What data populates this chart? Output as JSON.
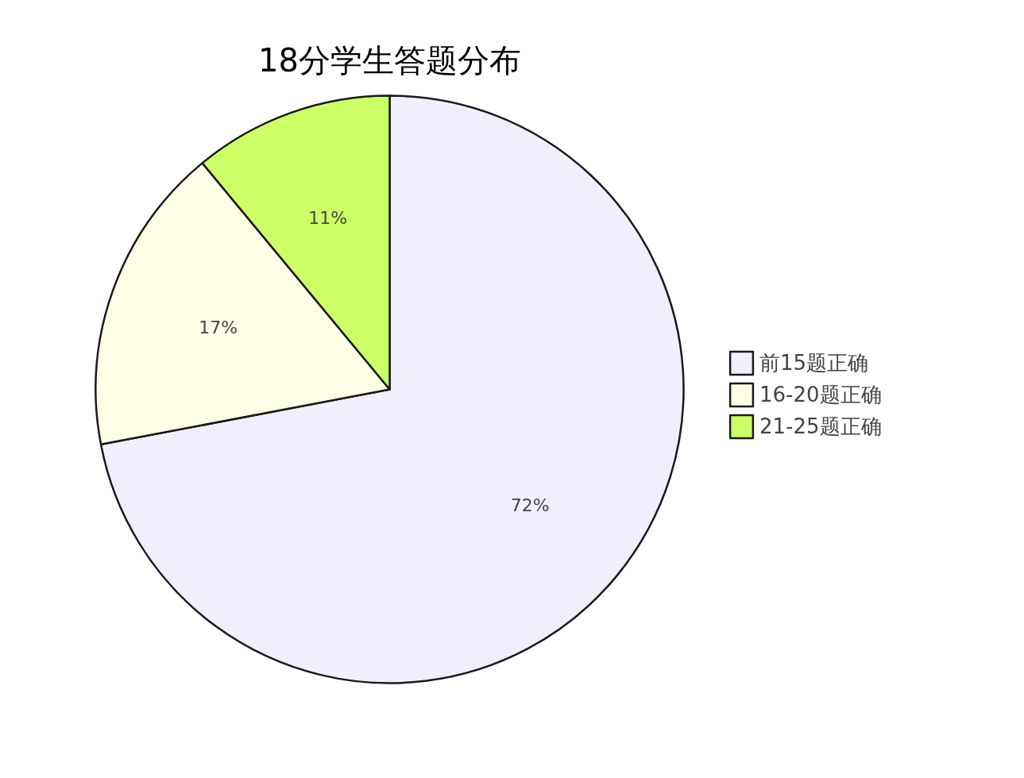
{
  "chart_data": {
    "type": "pie",
    "title": "18分学生答题分布",
    "categories": [
      "前15题正确",
      "16-20题正确",
      "21-25题正确"
    ],
    "values": [
      72,
      17,
      11
    ],
    "value_labels": [
      "72%",
      "17%",
      "11%"
    ],
    "colors": [
      "#f0f0fc",
      "#ffffe6",
      "#ccff66"
    ],
    "legend": "right"
  }
}
